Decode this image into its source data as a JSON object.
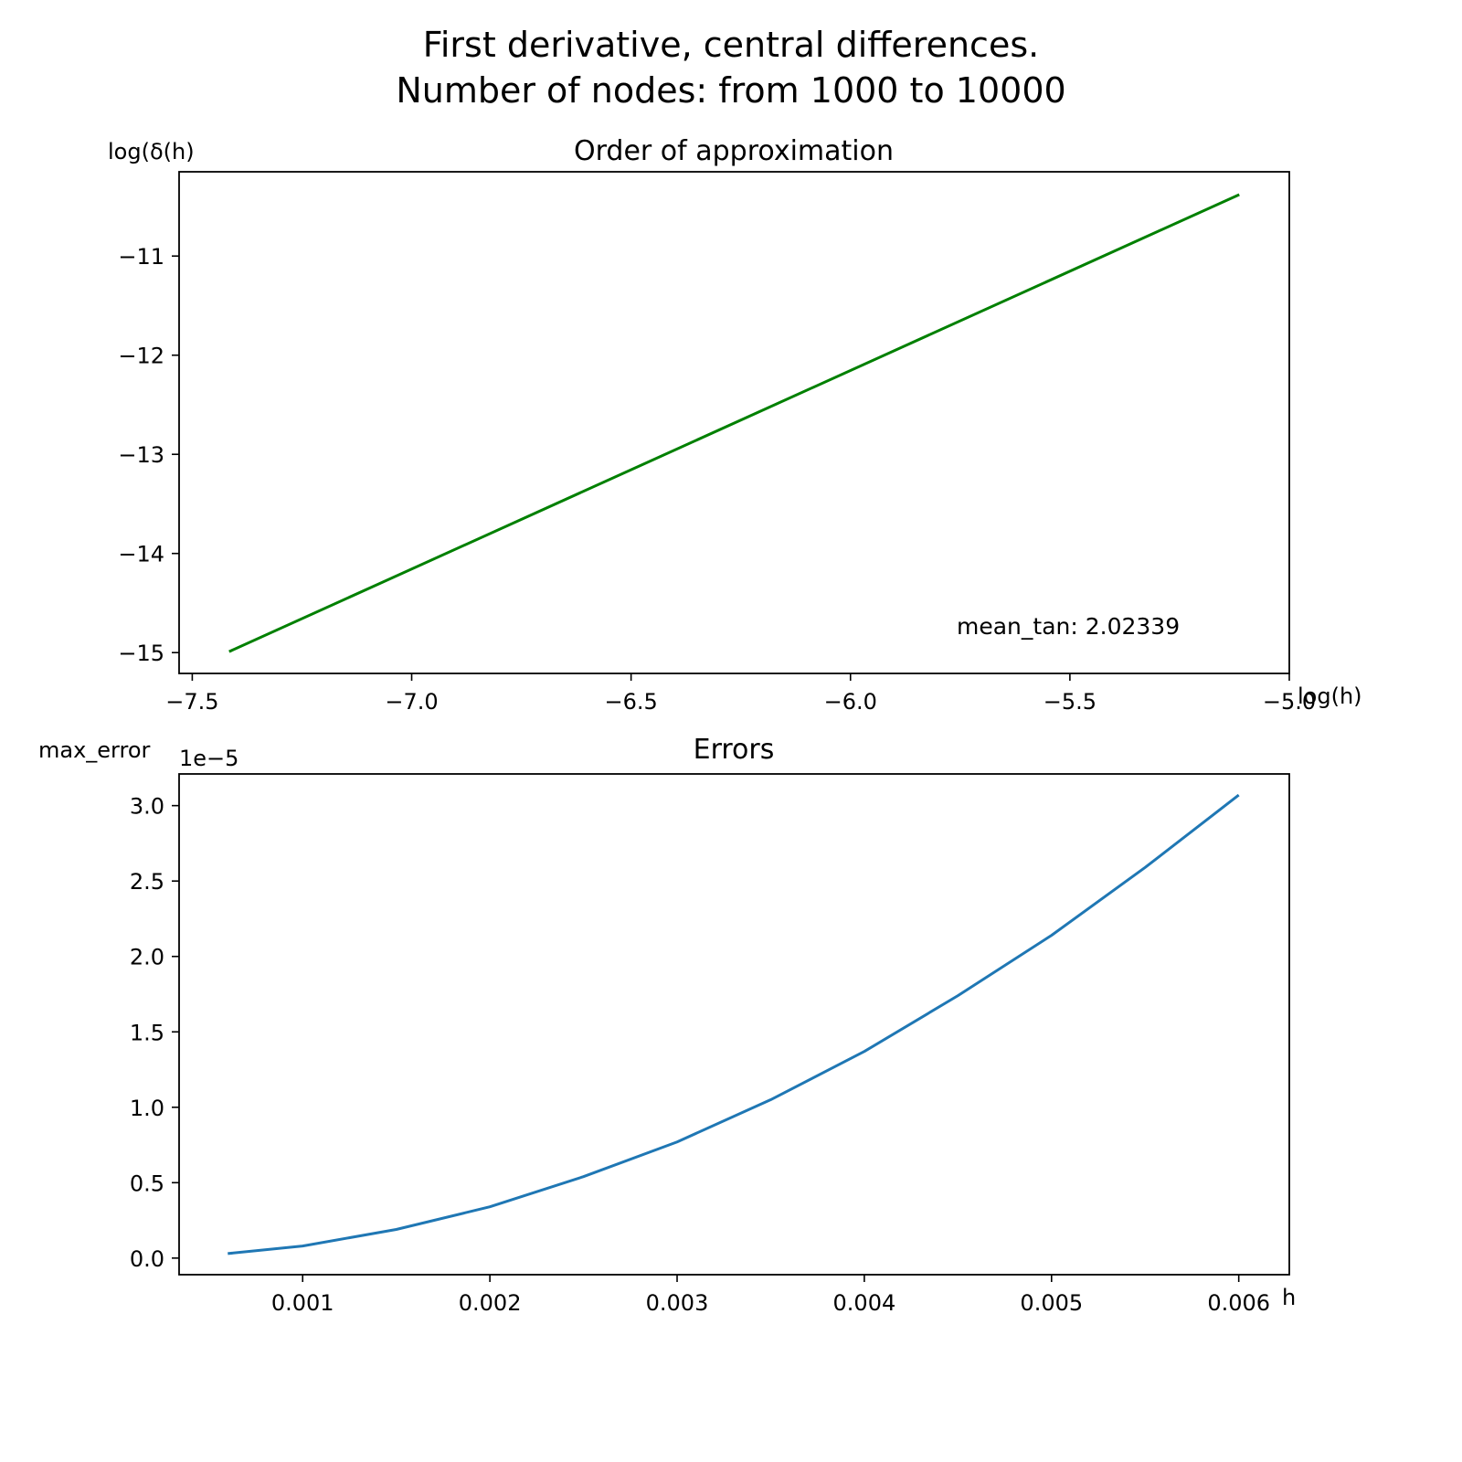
{
  "figure": {
    "title_line1": "First derivative, central differences.",
    "title_line2": "Number of nodes: from 1000 to 10000"
  },
  "chart_data": [
    {
      "type": "line",
      "title": "Order of approximation",
      "xlabel": "log(h)",
      "ylabel": "log(δ(h)",
      "xlim": [
        -7.53,
        -5.0
      ],
      "ylim": [
        -15.21,
        -10.15
      ],
      "xticks": [
        -7.5,
        -7.0,
        -6.5,
        -6.0,
        -5.5,
        -5.0
      ],
      "xtick_labels": [
        "−7.5",
        "−7.0",
        "−6.5",
        "−6.0",
        "−5.5",
        "−5.0"
      ],
      "yticks": [
        -15,
        -14,
        -13,
        -12,
        -11
      ],
      "ytick_labels": [
        "−15",
        "−14",
        "−13",
        "−12",
        "−11"
      ],
      "annotation": "mean_tan: 2.02339",
      "color": "#008000",
      "grid": false,
      "legend": "none",
      "series": [
        {
          "x": [
            -7.416,
            -5.114
          ],
          "y": [
            -14.99,
            -10.38
          ]
        }
      ]
    },
    {
      "type": "line",
      "title": "Errors",
      "xlabel": "h",
      "ylabel": "max_error",
      "offset_label": "1e−5",
      "xlim": [
        0.00034,
        0.00627
      ],
      "ylim": [
        -0.11,
        3.21
      ],
      "yscale_note": "values in units of 1e-5",
      "xticks": [
        0.001,
        0.002,
        0.003,
        0.004,
        0.005,
        0.006
      ],
      "xtick_labels": [
        "0.001",
        "0.002",
        "0.003",
        "0.004",
        "0.005",
        "0.006"
      ],
      "yticks": [
        0.0,
        0.5,
        1.0,
        1.5,
        2.0,
        2.5,
        3.0
      ],
      "ytick_labels": [
        "0.0",
        "0.5",
        "1.0",
        "1.5",
        "2.0",
        "2.5",
        "3.0"
      ],
      "color": "#1f77b4",
      "grid": false,
      "legend": "none",
      "series": [
        {
          "x": [
            0.0006,
            0.001,
            0.0015,
            0.002,
            0.0025,
            0.003,
            0.0035,
            0.004,
            0.0045,
            0.005,
            0.0055,
            0.006
          ],
          "y": [
            0.03,
            0.08,
            0.19,
            0.34,
            0.54,
            0.77,
            1.05,
            1.37,
            1.74,
            2.14,
            2.59,
            3.07
          ]
        }
      ]
    }
  ]
}
